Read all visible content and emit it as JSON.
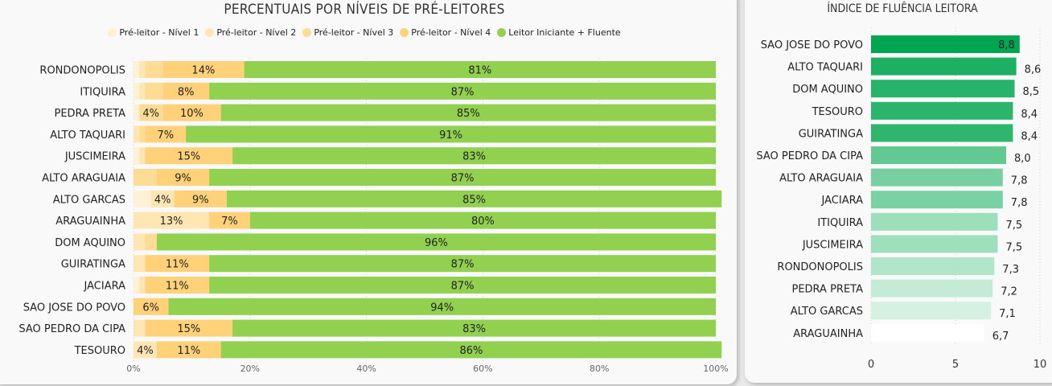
{
  "colors": {
    "level1": "#FFF1D6",
    "level2": "#FFE6B3",
    "level3": "#FFDC93",
    "level4": "#FFD27A",
    "fluent": "#92D050",
    "index_bar_scale": [
      "#00A651",
      "#1DB063",
      "#27B36A",
      "#2AB46C",
      "#2EB56E",
      "#63C992",
      "#78D0A2",
      "#7AD1A3",
      "#9DDEBB",
      "#A0DFBE",
      "#B1E5C9",
      "#C3EBD5",
      "#D5F1E2",
      "#FFFFFF"
    ]
  },
  "chart_data": [
    {
      "type": "bar",
      "orientation": "horizontal",
      "stacked": "percent",
      "title": "PERCENTUAIS POR NÍVEIS DE PRÉ-LEITORES",
      "legend_position": "top",
      "categories": [
        "RONDONOPOLIS",
        "ITIQUIRA",
        "PEDRA PRETA",
        "ALTO TAQUARI",
        "JUSCIMEIRA",
        "ALTO ARAGUAIA",
        "ALTO GARCAS",
        "ARAGUAINHA",
        "DOM AQUINO",
        "GUIRATINGA",
        "JACIARA",
        "SAO JOSE DO POVO",
        "SAO PEDRO DA CIPA",
        "TESOURO"
      ],
      "series": [
        {
          "name": "Pré-leitor - Nível 1",
          "color_key": "level1",
          "values": [
            1,
            1,
            1,
            0,
            1,
            0,
            3,
            0,
            0,
            0,
            1,
            0,
            0,
            0
          ]
        },
        {
          "name": "Pré-leitor - Nível 2",
          "color_key": "level2",
          "values": [
            1,
            1,
            0,
            1,
            1,
            0,
            4,
            13,
            2,
            2,
            1,
            0,
            2,
            4
          ]
        },
        {
          "name": "Pré-leitor - Nível 3",
          "color_key": "level3",
          "values": [
            3,
            3,
            4,
            1,
            0,
            4,
            0,
            0,
            2,
            0,
            0,
            0,
            0,
            0
          ]
        },
        {
          "name": "Pré-leitor - Nível 4",
          "color_key": "level4",
          "values": [
            14,
            8,
            10,
            7,
            15,
            9,
            9,
            7,
            0,
            11,
            11,
            6,
            15,
            11
          ]
        },
        {
          "name": "Leitor Iniciante + Fluente",
          "color_key": "fluent",
          "values": [
            81,
            87,
            85,
            91,
            83,
            87,
            85,
            80,
            96,
            87,
            87,
            94,
            83,
            86
          ]
        }
      ],
      "data_labels": [
        [
          null,
          null,
          null,
          "14%",
          "81%"
        ],
        [
          null,
          null,
          null,
          "8%",
          "87%"
        ],
        [
          null,
          null,
          "4%",
          "10%",
          "85%"
        ],
        [
          null,
          null,
          null,
          "7%",
          "91%"
        ],
        [
          null,
          null,
          null,
          "15%",
          "83%"
        ],
        [
          null,
          null,
          null,
          "9%",
          "87%"
        ],
        [
          null,
          "4%",
          null,
          "9%",
          "85%"
        ],
        [
          null,
          "13%",
          null,
          "7%",
          "80%"
        ],
        [
          null,
          null,
          null,
          null,
          "96%"
        ],
        [
          null,
          null,
          null,
          "11%",
          "87%"
        ],
        [
          null,
          null,
          null,
          "11%",
          "87%"
        ],
        [
          null,
          null,
          null,
          "6%",
          "94%"
        ],
        [
          null,
          null,
          null,
          "15%",
          "83%"
        ],
        [
          null,
          "4%",
          null,
          "11%",
          "86%"
        ]
      ],
      "xlim": [
        0,
        100
      ],
      "x_ticks": [
        "0%",
        "20%",
        "40%",
        "60%",
        "80%",
        "100%"
      ],
      "xlabel": "",
      "ylabel": "",
      "grid": true
    },
    {
      "type": "bar",
      "orientation": "horizontal",
      "title": "ÍNDICE DE FLUÊNCIA LEITORA",
      "categories": [
        "SAO JOSE DO POVO",
        "ALTO TAQUARI",
        "DOM AQUINO",
        "TESOURO",
        "GUIRATINGA",
        "SAO PEDRO DA CIPA",
        "ALTO ARAGUAIA",
        "JACIARA",
        "ITIQUIRA",
        "JUSCIMEIRA",
        "RONDONOPOLIS",
        "PEDRA PRETA",
        "ALTO GARCAS",
        "ARAGUAINHA"
      ],
      "values": [
        8.8,
        8.6,
        8.5,
        8.4,
        8.4,
        8.0,
        7.8,
        7.8,
        7.5,
        7.5,
        7.3,
        7.2,
        7.1,
        6.7
      ],
      "value_labels": [
        "8,8",
        "8,6",
        "8,5",
        "8,4",
        "8,4",
        "8,0",
        "7,8",
        "7,8",
        "7,5",
        "7,5",
        "7,3",
        "7,2",
        "7,1",
        "6,7"
      ],
      "xlim": [
        0,
        10
      ],
      "x_ticks": [
        "0",
        "5",
        "10"
      ],
      "x_tick_values": [
        0,
        5,
        10
      ],
      "xlabel": "",
      "ylabel": "",
      "grid": true
    }
  ]
}
